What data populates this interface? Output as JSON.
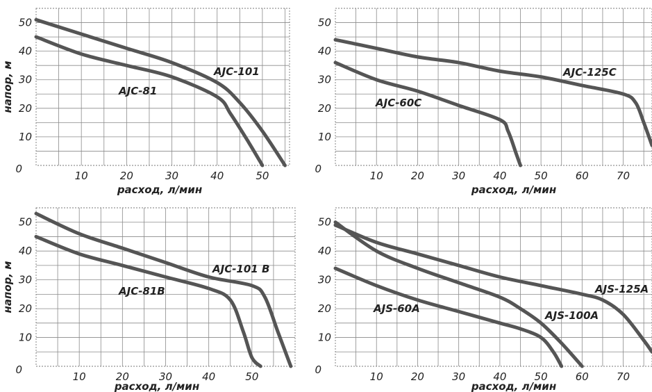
{
  "chart_data": [
    {
      "type": "line",
      "xlabel": "расход, л/мин",
      "ylabel": "напор, м",
      "xlim": [
        0,
        56
      ],
      "ylim": [
        0,
        55
      ],
      "x_ticks": [
        "10",
        "20",
        "30",
        "40",
        "50"
      ],
      "y_ticks": [
        "0",
        "10",
        "20",
        "30",
        "40",
        "50"
      ],
      "grid": true,
      "series": [
        {
          "name": "AJC-101",
          "x": [
            0,
            10,
            20,
            30,
            40,
            45,
            50,
            55
          ],
          "y": [
            51,
            46,
            41,
            36,
            29,
            22,
            12,
            0
          ]
        },
        {
          "name": "AJC-81",
          "x": [
            0,
            10,
            20,
            30,
            40,
            43,
            47,
            50
          ],
          "y": [
            45,
            39,
            35,
            31,
            24,
            18,
            8,
            0
          ]
        }
      ]
    },
    {
      "type": "line",
      "xlabel": "расход, л/мин",
      "ylabel": "",
      "xlim": [
        0,
        77
      ],
      "ylim": [
        0,
        55
      ],
      "x_ticks": [
        "10",
        "20",
        "30",
        "40",
        "50",
        "60",
        "70"
      ],
      "y_ticks": [
        "0",
        "10",
        "20",
        "30",
        "40",
        "50"
      ],
      "grid": true,
      "series": [
        {
          "name": "AJC-125C",
          "x": [
            0,
            10,
            20,
            30,
            40,
            50,
            60,
            70,
            73,
            75,
            77
          ],
          "y": [
            44,
            41,
            38,
            36,
            33,
            31,
            28,
            25,
            22,
            15,
            7
          ]
        },
        {
          "name": "AJC-60C",
          "x": [
            0,
            10,
            20,
            30,
            40,
            42,
            44,
            45
          ],
          "y": [
            36,
            30,
            26,
            21,
            16,
            12,
            4,
            0
          ]
        }
      ]
    },
    {
      "type": "line",
      "xlabel": "расход, л/мин",
      "ylabel": "напор, м",
      "xlim": [
        0,
        60
      ],
      "ylim": [
        0,
        55
      ],
      "x_ticks": [
        "10",
        "20",
        "30",
        "40",
        "50"
      ],
      "y_ticks": [
        "0",
        "10",
        "20",
        "30",
        "40",
        "50"
      ],
      "grid": true,
      "series": [
        {
          "name": "AJC-101 B",
          "x": [
            0,
            10,
            20,
            30,
            40,
            50,
            53,
            56,
            59
          ],
          "y": [
            53,
            46,
            41,
            36,
            31,
            28,
            24,
            12,
            0
          ]
        },
        {
          "name": "AJC-81B",
          "x": [
            0,
            10,
            20,
            30,
            40,
            45,
            48,
            50,
            52
          ],
          "y": [
            45,
            39,
            35,
            31,
            27,
            23,
            12,
            3,
            0
          ]
        }
      ]
    },
    {
      "type": "line",
      "xlabel": "расход, л/мин",
      "ylabel": "",
      "xlim": [
        0,
        77
      ],
      "ylim": [
        0,
        55
      ],
      "x_ticks": [
        "10",
        "20",
        "30",
        "40",
        "50",
        "60",
        "70"
      ],
      "y_ticks": [
        "0",
        "10",
        "20",
        "30",
        "40",
        "50"
      ],
      "grid": true,
      "series": [
        {
          "name": "AJS-125A",
          "x": [
            0,
            10,
            20,
            30,
            40,
            50,
            60,
            65,
            70,
            75,
            77
          ],
          "y": [
            49,
            43,
            39,
            35,
            31,
            28,
            25,
            23,
            18,
            9,
            5
          ]
        },
        {
          "name": "AJS-100A",
          "x": [
            0,
            10,
            20,
            30,
            40,
            45,
            50,
            55,
            60
          ],
          "y": [
            50,
            40,
            34,
            29,
            24,
            20,
            15,
            8,
            0
          ]
        },
        {
          "name": "AJS-60A",
          "x": [
            0,
            10,
            20,
            30,
            40,
            45,
            50,
            53,
            55
          ],
          "y": [
            34,
            28,
            23,
            19,
            15,
            13,
            10,
            5,
            0
          ]
        }
      ]
    }
  ]
}
